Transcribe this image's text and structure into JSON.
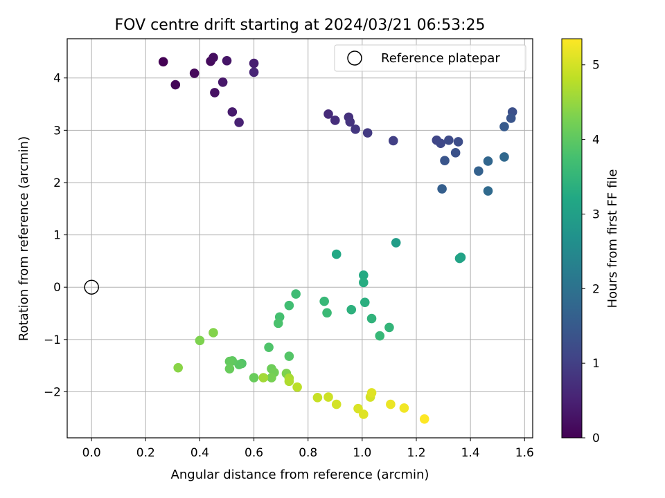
{
  "chart_data": {
    "type": "scatter",
    "title": "FOV centre drift starting at 2024/03/21 06:53:25",
    "xlabel": "Angular distance from reference (arcmin)",
    "ylabel": "Rotation from reference (arcmin)",
    "xlim": [
      -0.09,
      1.63
    ],
    "ylim": [
      -2.88,
      4.75
    ],
    "xticks": [
      0.0,
      0.2,
      0.4,
      0.6,
      0.8,
      1.0,
      1.2,
      1.4,
      1.6
    ],
    "xtick_labels": [
      "0.0",
      "0.2",
      "0.4",
      "0.6",
      "0.8",
      "1.0",
      "1.2",
      "1.4",
      "1.6"
    ],
    "yticks": [
      -2,
      -1,
      0,
      1,
      2,
      3,
      4
    ],
    "ytick_labels": [
      "−2",
      "−1",
      "0",
      "1",
      "2",
      "3",
      "4"
    ],
    "grid": true,
    "legend": {
      "position": "top-right",
      "label": "Reference platepar",
      "marker": "hollow circle"
    },
    "reference_point": {
      "x": 0.0,
      "y": 0.0
    },
    "colorbar": {
      "label": "Hours from first FF file",
      "colormap": "viridis",
      "range": [
        0,
        5.35
      ],
      "ticks": [
        0,
        1,
        2,
        3,
        4,
        5
      ],
      "tick_labels": [
        "0",
        "1",
        "2",
        "3",
        "4",
        "5"
      ]
    },
    "series": [
      {
        "points": [
          {
            "x": 0.265,
            "y": 4.31,
            "c": 0.0
          },
          {
            "x": 0.31,
            "y": 3.87,
            "c": 0.05
          },
          {
            "x": 0.38,
            "y": 4.09,
            "c": 0.1
          },
          {
            "x": 0.44,
            "y": 4.32,
            "c": 0.15
          },
          {
            "x": 0.45,
            "y": 4.39,
            "c": 0.2
          },
          {
            "x": 0.455,
            "y": 3.72,
            "c": 0.25
          },
          {
            "x": 0.5,
            "y": 4.33,
            "c": 0.3
          },
          {
            "x": 0.485,
            "y": 3.92,
            "c": 0.35
          },
          {
            "x": 0.52,
            "y": 3.35,
            "c": 0.4
          },
          {
            "x": 0.545,
            "y": 3.15,
            "c": 0.5
          },
          {
            "x": 0.6,
            "y": 4.28,
            "c": 0.45
          },
          {
            "x": 0.6,
            "y": 4.11,
            "c": 0.55
          },
          {
            "x": 0.875,
            "y": 3.31,
            "c": 0.65
          },
          {
            "x": 0.9,
            "y": 3.19,
            "c": 0.7
          },
          {
            "x": 0.95,
            "y": 3.25,
            "c": 0.75
          },
          {
            "x": 0.955,
            "y": 3.16,
            "c": 0.8
          },
          {
            "x": 0.975,
            "y": 3.02,
            "c": 0.85
          },
          {
            "x": 1.02,
            "y": 2.95,
            "c": 0.9
          },
          {
            "x": 1.115,
            "y": 2.8,
            "c": 1.0
          },
          {
            "x": 1.275,
            "y": 2.81,
            "c": 1.1
          },
          {
            "x": 1.29,
            "y": 2.75,
            "c": 1.15
          },
          {
            "x": 1.32,
            "y": 2.81,
            "c": 1.2
          },
          {
            "x": 1.355,
            "y": 2.78,
            "c": 1.25
          },
          {
            "x": 1.345,
            "y": 2.57,
            "c": 1.35
          },
          {
            "x": 1.305,
            "y": 2.42,
            "c": 1.4
          },
          {
            "x": 1.555,
            "y": 3.35,
            "c": 1.3
          },
          {
            "x": 1.55,
            "y": 3.23,
            "c": 1.4
          },
          {
            "x": 1.525,
            "y": 3.07,
            "c": 1.5
          },
          {
            "x": 1.295,
            "y": 1.88,
            "c": 1.6
          },
          {
            "x": 1.43,
            "y": 2.22,
            "c": 1.65
          },
          {
            "x": 1.465,
            "y": 2.41,
            "c": 1.75
          },
          {
            "x": 1.525,
            "y": 2.49,
            "c": 1.8
          },
          {
            "x": 1.465,
            "y": 1.84,
            "c": 1.85
          },
          {
            "x": 1.125,
            "y": 0.85,
            "c": 2.95
          },
          {
            "x": 1.365,
            "y": 0.57,
            "c": 3.05
          },
          {
            "x": 1.36,
            "y": 0.55,
            "c": 3.1
          },
          {
            "x": 0.905,
            "y": 0.63,
            "c": 3.2
          },
          {
            "x": 1.005,
            "y": 0.23,
            "c": 3.25
          },
          {
            "x": 1.005,
            "y": 0.09,
            "c": 3.3
          },
          {
            "x": 1.01,
            "y": -0.29,
            "c": 3.35
          },
          {
            "x": 0.96,
            "y": -0.43,
            "c": 3.4
          },
          {
            "x": 1.035,
            "y": -0.6,
            "c": 3.45
          },
          {
            "x": 1.1,
            "y": -0.77,
            "c": 3.5
          },
          {
            "x": 1.065,
            "y": -0.93,
            "c": 3.55
          },
          {
            "x": 0.86,
            "y": -0.27,
            "c": 3.55
          },
          {
            "x": 0.87,
            "y": -0.49,
            "c": 3.6
          },
          {
            "x": 0.755,
            "y": -0.13,
            "c": 3.65
          },
          {
            "x": 0.73,
            "y": -0.35,
            "c": 3.7
          },
          {
            "x": 0.695,
            "y": -0.57,
            "c": 3.75
          },
          {
            "x": 0.69,
            "y": -0.69,
            "c": 3.8
          },
          {
            "x": 0.655,
            "y": -1.15,
            "c": 3.85
          },
          {
            "x": 0.73,
            "y": -1.32,
            "c": 3.9
          },
          {
            "x": 0.555,
            "y": -1.46,
            "c": 3.9
          },
          {
            "x": 0.545,
            "y": -1.48,
            "c": 3.95
          },
          {
            "x": 0.52,
            "y": -1.41,
            "c": 4.0
          },
          {
            "x": 0.51,
            "y": -1.42,
            "c": 4.05
          },
          {
            "x": 0.51,
            "y": -1.56,
            "c": 4.1
          },
          {
            "x": 0.6,
            "y": -1.73,
            "c": 4.1
          },
          {
            "x": 0.665,
            "y": -1.56,
            "c": 4.15
          },
          {
            "x": 0.675,
            "y": -1.63,
            "c": 4.2
          },
          {
            "x": 0.665,
            "y": -1.73,
            "c": 4.25
          },
          {
            "x": 0.72,
            "y": -1.65,
            "c": 4.3
          },
          {
            "x": 0.4,
            "y": -1.02,
            "c": 4.3
          },
          {
            "x": 0.45,
            "y": -0.87,
            "c": 4.35
          },
          {
            "x": 0.32,
            "y": -1.54,
            "c": 4.4
          },
          {
            "x": 0.635,
            "y": -1.73,
            "c": 4.6
          },
          {
            "x": 0.73,
            "y": -1.74,
            "c": 4.65
          },
          {
            "x": 0.73,
            "y": -1.8,
            "c": 4.7
          },
          {
            "x": 0.76,
            "y": -1.91,
            "c": 4.8
          },
          {
            "x": 0.835,
            "y": -2.11,
            "c": 4.9
          },
          {
            "x": 0.875,
            "y": -2.1,
            "c": 4.95
          },
          {
            "x": 0.905,
            "y": -2.24,
            "c": 5.0
          },
          {
            "x": 0.985,
            "y": -2.32,
            "c": 5.05
          },
          {
            "x": 1.005,
            "y": -2.43,
            "c": 5.1
          },
          {
            "x": 1.03,
            "y": -2.1,
            "c": 5.0
          },
          {
            "x": 1.035,
            "y": -2.02,
            "c": 5.1
          },
          {
            "x": 1.105,
            "y": -2.24,
            "c": 5.2
          },
          {
            "x": 1.155,
            "y": -2.31,
            "c": 5.25
          },
          {
            "x": 1.23,
            "y": -2.52,
            "c": 5.35
          }
        ]
      }
    ]
  }
}
